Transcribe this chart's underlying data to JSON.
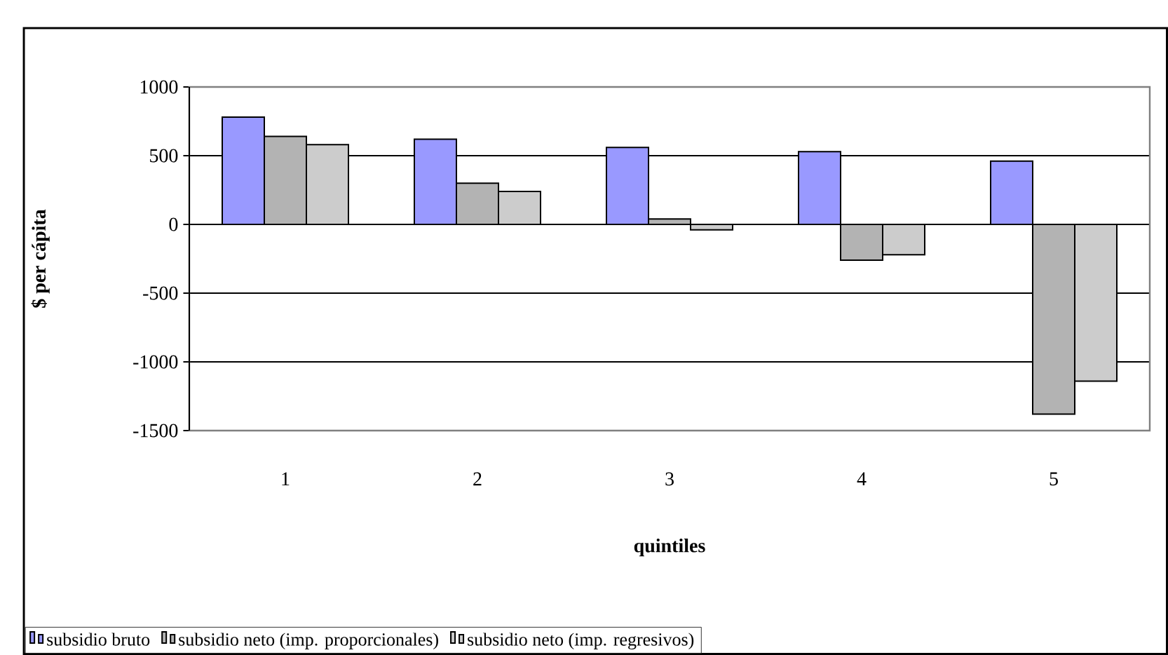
{
  "chart_data": {
    "type": "bar",
    "xlabel": "quintiles",
    "ylabel": "$ per cápita",
    "categories": [
      "1",
      "2",
      "3",
      "4",
      "5"
    ],
    "series": [
      {
        "name": "subsidio bruto",
        "color": "#9999ff",
        "values": [
          780,
          620,
          560,
          530,
          460
        ]
      },
      {
        "name": "subsidio neto (imp. proporcionales)",
        "color": "#b3b3b3",
        "values": [
          640,
          300,
          40,
          -260,
          -1380
        ]
      },
      {
        "name": "subsidio neto (imp. regresivos)",
        "color": "#cccccc",
        "values": [
          580,
          240,
          -40,
          -220,
          -1140
        ]
      }
    ],
    "ylim": [
      -1500,
      1000
    ],
    "yticks": [
      -1500,
      -1000,
      -500,
      0,
      500,
      1000
    ],
    "grid": "y",
    "legend": "bottom"
  }
}
